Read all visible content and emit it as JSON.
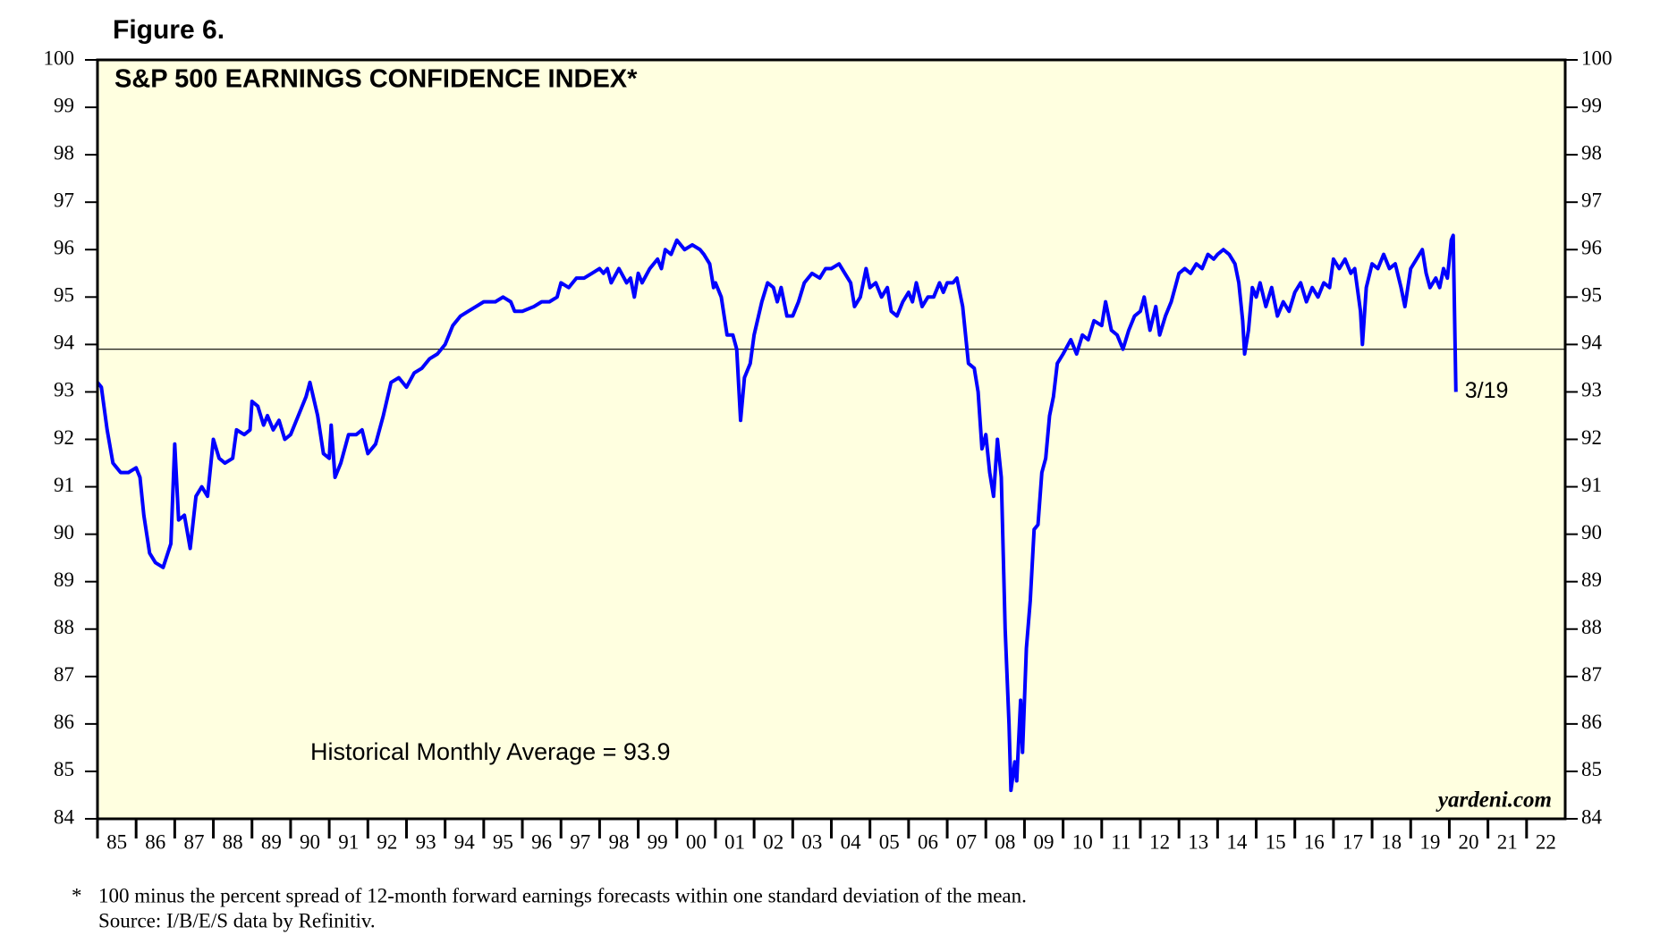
{
  "chart_data": {
    "type": "line",
    "figure_label": "Figure 6.",
    "title": "S&P 500 EARNINGS CONFIDENCE INDEX*",
    "color": "#0000ff",
    "background": "#ffffe0",
    "x": [
      1985.0,
      1985.1,
      1985.25,
      1985.4,
      1985.6,
      1985.8,
      1986.0,
      1986.1,
      1986.2,
      1986.35,
      1986.5,
      1986.7,
      1986.9,
      1987.0,
      1987.1,
      1987.25,
      1987.4,
      1987.55,
      1987.7,
      1987.85,
      1988.0,
      1988.15,
      1988.3,
      1988.5,
      1988.6,
      1988.8,
      1988.95,
      1989.0,
      1989.15,
      1989.3,
      1989.4,
      1989.55,
      1989.7,
      1989.85,
      1990.0,
      1990.2,
      1990.4,
      1990.5,
      1990.7,
      1990.85,
      1991.0,
      1991.05,
      1991.15,
      1991.3,
      1991.5,
      1991.7,
      1991.85,
      1992.0,
      1992.2,
      1992.4,
      1992.6,
      1992.8,
      1993.0,
      1993.2,
      1993.4,
      1993.6,
      1993.8,
      1994.0,
      1994.2,
      1994.4,
      1994.6,
      1994.8,
      1995.0,
      1995.3,
      1995.5,
      1995.7,
      1995.8,
      1996.0,
      1996.3,
      1996.5,
      1996.7,
      1996.9,
      1997.0,
      1997.2,
      1997.4,
      1997.6,
      1997.8,
      1998.0,
      1998.1,
      1998.2,
      1998.3,
      1998.5,
      1998.7,
      1998.8,
      1998.9,
      1999.0,
      1999.1,
      1999.3,
      1999.5,
      1999.6,
      1999.7,
      1999.85,
      2000.0,
      2000.2,
      2000.4,
      2000.6,
      2000.7,
      2000.85,
      2000.95,
      2001.0,
      2001.15,
      2001.3,
      2001.45,
      2001.55,
      2001.65,
      2001.75,
      2001.9,
      2002.0,
      2002.2,
      2002.35,
      2002.5,
      2002.6,
      2002.7,
      2002.85,
      2003.0,
      2003.15,
      2003.3,
      2003.5,
      2003.7,
      2003.85,
      2004.0,
      2004.2,
      2004.35,
      2004.5,
      2004.6,
      2004.75,
      2004.9,
      2005.0,
      2005.15,
      2005.3,
      2005.45,
      2005.55,
      2005.7,
      2005.85,
      2006.0,
      2006.1,
      2006.2,
      2006.35,
      2006.5,
      2006.65,
      2006.8,
      2006.9,
      2007.0,
      2007.15,
      2007.25,
      2007.4,
      2007.55,
      2007.7,
      2007.8,
      2007.9,
      2008.0,
      2008.1,
      2008.2,
      2008.3,
      2008.4,
      2008.5,
      2008.6,
      2008.65,
      2008.75,
      2008.8,
      2008.9,
      2008.95,
      2009.05,
      2009.15,
      2009.25,
      2009.35,
      2009.45,
      2009.55,
      2009.65,
      2009.75,
      2009.85,
      2010.0,
      2010.2,
      2010.35,
      2010.5,
      2010.65,
      2010.8,
      2011.0,
      2011.1,
      2011.25,
      2011.4,
      2011.55,
      2011.7,
      2011.85,
      2012.0,
      2012.1,
      2012.25,
      2012.4,
      2012.5,
      2012.65,
      2012.8,
      2013.0,
      2013.15,
      2013.3,
      2013.45,
      2013.6,
      2013.75,
      2013.9,
      2014.0,
      2014.15,
      2014.3,
      2014.45,
      2014.55,
      2014.65,
      2014.7,
      2014.8,
      2014.9,
      2015.0,
      2015.1,
      2015.25,
      2015.4,
      2015.55,
      2015.7,
      2015.85,
      2016.0,
      2016.15,
      2016.3,
      2016.45,
      2016.6,
      2016.75,
      2016.9,
      2017.0,
      2017.15,
      2017.3,
      2017.45,
      2017.55,
      2017.7,
      2017.75,
      2017.85,
      2018.0,
      2018.15,
      2018.3,
      2018.45,
      2018.6,
      2018.75,
      2018.85,
      2019.0,
      2019.15,
      2019.3,
      2019.4,
      2019.5,
      2019.65,
      2019.75,
      2019.85,
      2019.95,
      2020.05,
      2020.1,
      2020.17
    ],
    "values": [
      93.2,
      93.1,
      92.2,
      91.5,
      91.3,
      91.3,
      91.4,
      91.2,
      90.4,
      89.6,
      89.4,
      89.3,
      89.8,
      91.9,
      90.3,
      90.4,
      89.7,
      90.8,
      91.0,
      90.8,
      92.0,
      91.6,
      91.5,
      91.6,
      92.2,
      92.1,
      92.2,
      92.8,
      92.7,
      92.3,
      92.5,
      92.2,
      92.4,
      92.0,
      92.1,
      92.5,
      92.9,
      93.2,
      92.5,
      91.7,
      91.6,
      92.3,
      91.2,
      91.5,
      92.1,
      92.1,
      92.2,
      91.7,
      91.9,
      92.5,
      93.2,
      93.3,
      93.1,
      93.4,
      93.5,
      93.7,
      93.8,
      94.0,
      94.4,
      94.6,
      94.7,
      94.8,
      94.9,
      94.9,
      95.0,
      94.9,
      94.7,
      94.7,
      94.8,
      94.9,
      94.9,
      95.0,
      95.3,
      95.2,
      95.4,
      95.4,
      95.5,
      95.6,
      95.5,
      95.6,
      95.3,
      95.6,
      95.3,
      95.4,
      95.0,
      95.5,
      95.3,
      95.6,
      95.8,
      95.6,
      96.0,
      95.9,
      96.2,
      96.0,
      96.1,
      96.0,
      95.9,
      95.7,
      95.2,
      95.3,
      95.0,
      94.2,
      94.2,
      93.9,
      92.4,
      93.3,
      93.6,
      94.2,
      94.9,
      95.3,
      95.2,
      94.9,
      95.2,
      94.6,
      94.6,
      94.9,
      95.3,
      95.5,
      95.4,
      95.6,
      95.6,
      95.7,
      95.5,
      95.3,
      94.8,
      95.0,
      95.6,
      95.2,
      95.3,
      95.0,
      95.2,
      94.7,
      94.6,
      94.9,
      95.1,
      94.9,
      95.3,
      94.8,
      95.0,
      95.0,
      95.3,
      95.1,
      95.3,
      95.3,
      95.4,
      94.8,
      93.6,
      93.5,
      93.0,
      91.8,
      92.1,
      91.3,
      90.8,
      92.0,
      91.2,
      88.0,
      86.0,
      84.6,
      85.2,
      84.8,
      86.5,
      85.4,
      87.6,
      88.6,
      90.1,
      90.2,
      91.3,
      91.6,
      92.5,
      92.9,
      93.6,
      93.8,
      94.1,
      93.8,
      94.2,
      94.1,
      94.5,
      94.4,
      94.9,
      94.3,
      94.2,
      93.9,
      94.3,
      94.6,
      94.7,
      95.0,
      94.3,
      94.8,
      94.2,
      94.6,
      94.9,
      95.5,
      95.6,
      95.5,
      95.7,
      95.6,
      95.9,
      95.8,
      95.9,
      96.0,
      95.9,
      95.7,
      95.3,
      94.5,
      93.8,
      94.3,
      95.2,
      95.0,
      95.3,
      94.8,
      95.2,
      94.6,
      94.9,
      94.7,
      95.1,
      95.3,
      94.9,
      95.2,
      95.0,
      95.3,
      95.2,
      95.8,
      95.6,
      95.8,
      95.5,
      95.6,
      94.7,
      94.0,
      95.2,
      95.7,
      95.6,
      95.9,
      95.6,
      95.7,
      95.2,
      94.8,
      95.6,
      95.8,
      96.0,
      95.5,
      95.2,
      95.4,
      95.2,
      95.6,
      95.4,
      96.2,
      96.3,
      93.0
    ],
    "end_label": "3/19",
    "xlim": [
      1985,
      2023
    ],
    "xticks": [
      {
        "value": 1985,
        "label": "85"
      },
      {
        "value": 1986,
        "label": "86"
      },
      {
        "value": 1987,
        "label": "87"
      },
      {
        "value": 1988,
        "label": "88"
      },
      {
        "value": 1989,
        "label": "89"
      },
      {
        "value": 1990,
        "label": "90"
      },
      {
        "value": 1991,
        "label": "91"
      },
      {
        "value": 1992,
        "label": "92"
      },
      {
        "value": 1993,
        "label": "93"
      },
      {
        "value": 1994,
        "label": "94"
      },
      {
        "value": 1995,
        "label": "95"
      },
      {
        "value": 1996,
        "label": "96"
      },
      {
        "value": 1997,
        "label": "97"
      },
      {
        "value": 1998,
        "label": "98"
      },
      {
        "value": 1999,
        "label": "99"
      },
      {
        "value": 2000,
        "label": "00"
      },
      {
        "value": 2001,
        "label": "01"
      },
      {
        "value": 2002,
        "label": "02"
      },
      {
        "value": 2003,
        "label": "03"
      },
      {
        "value": 2004,
        "label": "04"
      },
      {
        "value": 2005,
        "label": "05"
      },
      {
        "value": 2006,
        "label": "06"
      },
      {
        "value": 2007,
        "label": "07"
      },
      {
        "value": 2008,
        "label": "08"
      },
      {
        "value": 2009,
        "label": "09"
      },
      {
        "value": 2010,
        "label": "10"
      },
      {
        "value": 2011,
        "label": "11"
      },
      {
        "value": 2012,
        "label": "12"
      },
      {
        "value": 2013,
        "label": "13"
      },
      {
        "value": 2014,
        "label": "14"
      },
      {
        "value": 2015,
        "label": "15"
      },
      {
        "value": 2016,
        "label": "16"
      },
      {
        "value": 2017,
        "label": "17"
      },
      {
        "value": 2018,
        "label": "18"
      },
      {
        "value": 2019,
        "label": "19"
      },
      {
        "value": 2020,
        "label": "20"
      },
      {
        "value": 2021,
        "label": "21"
      },
      {
        "value": 2022,
        "label": "22"
      }
    ],
    "ylim": [
      84,
      100
    ],
    "yticks": [
      84,
      85,
      86,
      87,
      88,
      89,
      90,
      91,
      92,
      93,
      94,
      95,
      96,
      97,
      98,
      99,
      100
    ],
    "reference_line": {
      "value": 93.9,
      "label": "Historical Monthly Average = 93.9"
    },
    "watermark": "yardeni.com",
    "footnote_marker": "*",
    "footnote": "100 minus the percent spread of 12-month forward earnings forecasts within one standard deviation of the mean.",
    "source": "Source: I/B/E/S data by Refinitiv."
  }
}
